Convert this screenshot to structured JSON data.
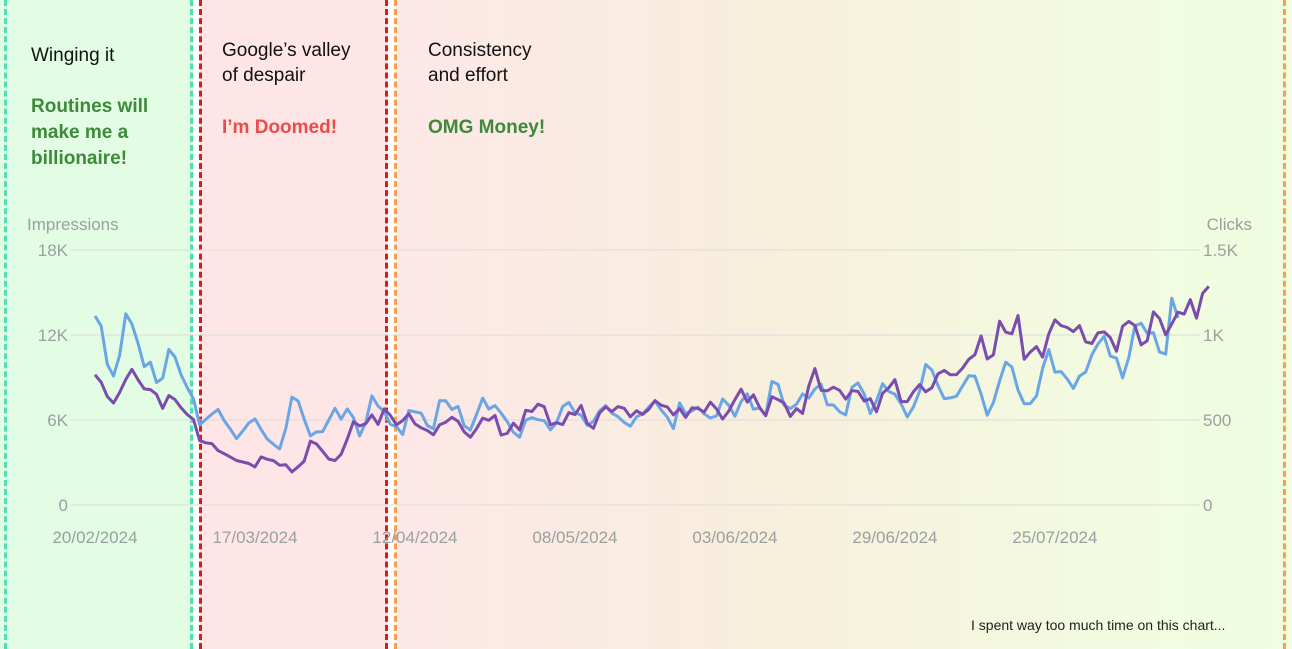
{
  "phases": [
    {
      "title": "Winging it",
      "mood": "Routines will\nmake me a\nbillionaire!"
    },
    {
      "title": "Google’s valley\nof despair",
      "mood": "I’m Doomed!"
    },
    {
      "title": "Consistency\nand effort",
      "mood": "OMG Money!"
    }
  ],
  "footnote": "I spent way too much time on this chart...",
  "colors": {
    "impressions": "#6aa6e6",
    "clicks": "#7a4cae",
    "phase1": "#4fe0b5",
    "phase2": "#e01818",
    "phase3": "#f6a04e",
    "good_mood": "#3c8a3a",
    "bad_mood": "#ef4a4a"
  },
  "chart_data": {
    "type": "line",
    "x_start": "20/02/2024",
    "x_end": "31/08/2024",
    "x_tick_labels": [
      "20/02/2024",
      "17/03/2024",
      "12/04/2024",
      "08/05/2024",
      "03/06/2024",
      "29/06/2024",
      "25/07/2024"
    ],
    "y_left": {
      "label": "Impressions",
      "range": [
        0,
        18000
      ],
      "tick_labels": [
        "0",
        "6K",
        "12K",
        "18K"
      ]
    },
    "y_right": {
      "label": "Clicks",
      "range": [
        0,
        1500
      ],
      "tick_labels": [
        "0",
        "500",
        "1K",
        "1.5K"
      ]
    },
    "grid": true,
    "series": [
      {
        "name": "Impressions",
        "axis": "left",
        "values": [
          13350,
          12630,
          9930,
          9100,
          10560,
          13500,
          12780,
          11400,
          9770,
          10080,
          8650,
          8950,
          10980,
          10450,
          9190,
          8280,
          7490,
          5640,
          6050,
          6420,
          6750,
          5960,
          5350,
          4690,
          5220,
          5790,
          6080,
          5340,
          4650,
          4290,
          3960,
          5400,
          7620,
          7350,
          6050,
          4880,
          5160,
          5180,
          6010,
          6830,
          6060,
          6780,
          6170,
          4870,
          5840,
          7700,
          6980,
          6610,
          5700,
          5530,
          4970,
          6670,
          6580,
          6490,
          5610,
          5380,
          7370,
          7360,
          6740,
          6970,
          5600,
          5290,
          6380,
          7550,
          6770,
          7020,
          6490,
          5870,
          5140,
          4780,
          5990,
          6160,
          6020,
          5960,
          5300,
          5800,
          6950,
          7240,
          6520,
          6340,
          5620,
          5900,
          6650,
          7020,
          6480,
          6230,
          5830,
          5560,
          6220,
          6440,
          6920,
          7350,
          6710,
          6200,
          5390,
          7210,
          6450,
          6640,
          6910,
          6430,
          6140,
          6290,
          7490,
          7040,
          6270,
          7300,
          7850,
          6760,
          6850,
          6330,
          8720,
          8520,
          7040,
          6810,
          7110,
          7840,
          7550,
          8190,
          8530,
          7070,
          7060,
          6580,
          6360,
          8310,
          8610,
          7830,
          6450,
          7360,
          8560,
          8010,
          7820,
          7130,
          6220,
          6920,
          8030,
          9920,
          9530,
          8430,
          7510,
          7560,
          7680,
          8400,
          9120,
          9100,
          7830,
          6340,
          7240,
          8760,
          10080,
          9740,
          8120,
          7150,
          7160,
          7700,
          9640,
          10980,
          9380,
          9420,
          8900,
          8230,
          9100,
          9390,
          10610,
          11370,
          11910,
          10510,
          10360,
          8970,
          10410,
          12640,
          12830,
          12130,
          12170,
          10810,
          10650,
          14600,
          13200
        ]
      },
      {
        "name": "Clicks",
        "axis": "right",
        "values": [
          766,
          722,
          638,
          600,
          662,
          739,
          798,
          736,
          683,
          679,
          651,
          568,
          644,
          620,
          572,
          532,
          503,
          379,
          366,
          361,
          320,
          302,
          282,
          262,
          253,
          244,
          224,
          283,
          269,
          261,
          234,
          237,
          195,
          225,
          258,
          376,
          359,
          315,
          270,
          262,
          298,
          388,
          490,
          465,
          478,
          530,
          474,
          565,
          527,
          471,
          497,
          537,
          477,
          454,
          438,
          413,
          472,
          487,
          516,
          492,
          430,
          399,
          449,
          511,
          498,
          527,
          411,
          422,
          482,
          441,
          557,
          550,
          593,
          578,
          472,
          485,
          473,
          543,
          532,
          586,
          478,
          451,
          542,
          577,
          550,
          579,
          569,
          519,
          554,
          533,
          563,
          614,
          587,
          577,
          530,
          567,
          515,
          571,
          568,
          547,
          605,
          565,
          505,
          553,
          621,
          681,
          605,
          648,
          574,
          525,
          637,
          620,
          599,
          521,
          567,
          539,
          700,
          803,
          675,
          671,
          693,
          675,
          623,
          673,
          668,
          611,
          626,
          548,
          657,
          690,
          737,
          608,
          608,
          666,
          708,
          666,
          690,
          772,
          792,
          766,
          767,
          805,
          857,
          884,
          995,
          859,
          883,
          1081,
          1017,
          1007,
          1114,
          857,
          900,
          932,
          870,
          1007,
          1089,
          1055,
          1044,
          1020,
          1055,
          960,
          950,
          1013,
          1018,
          985,
          904,
          1052,
          1080,
          1056,
          942,
          966,
          1136,
          1097,
          1001,
          1066,
          1134,
          1123,
          1208,
          1099,
          1245,
          1286
        ]
      }
    ]
  }
}
